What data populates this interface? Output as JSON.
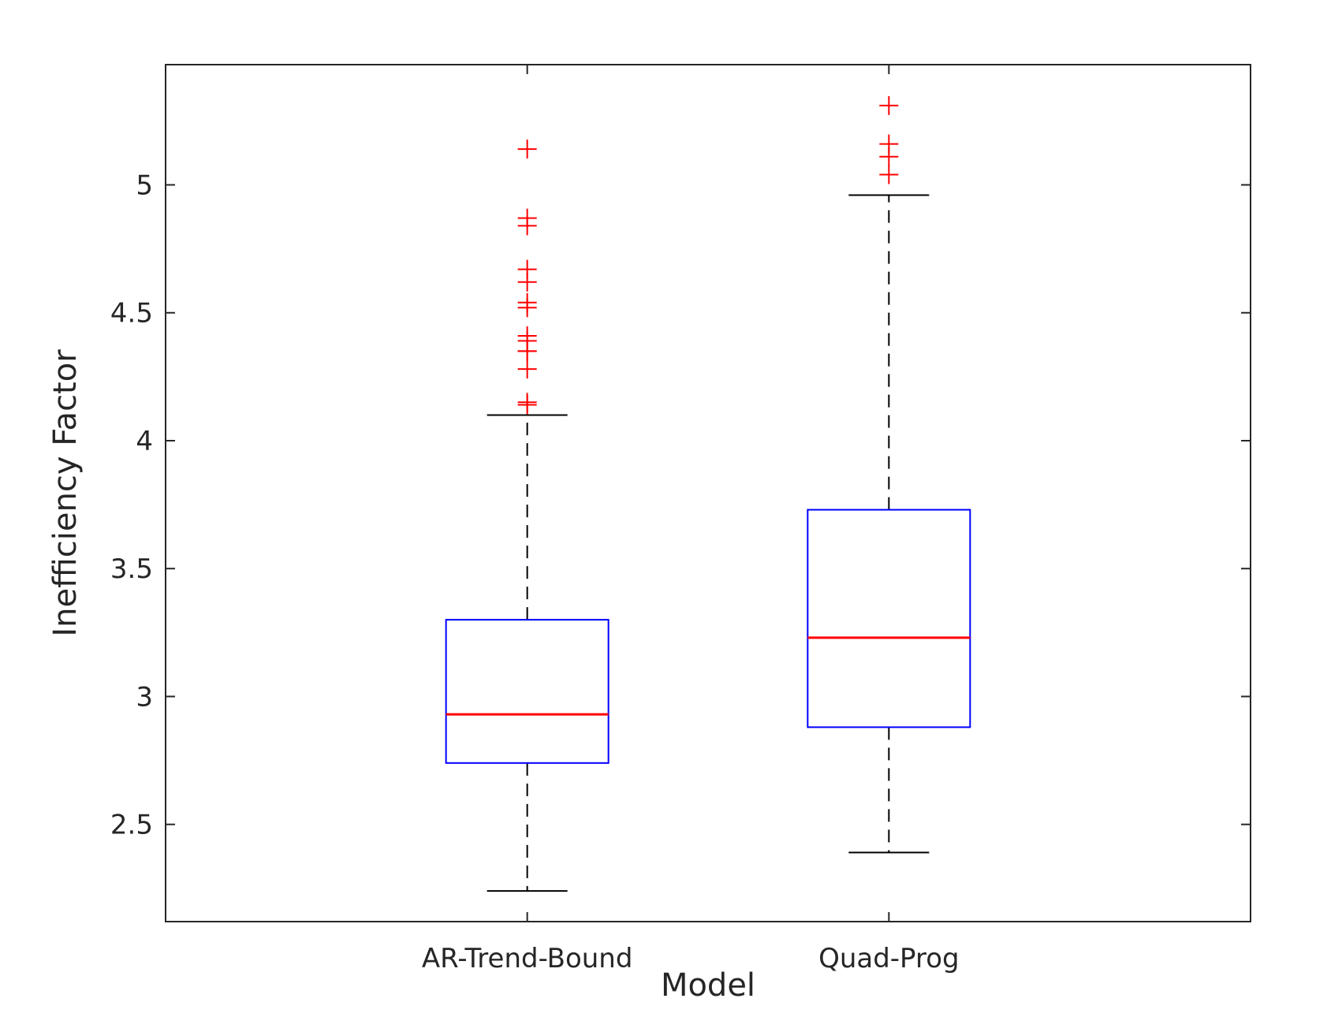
{
  "chart_data": {
    "type": "boxplot",
    "xlabel": "Model",
    "ylabel": "Inefficiency Factor",
    "ylim": [
      2.12,
      5.47
    ],
    "yticks": [
      2.5,
      3,
      3.5,
      4,
      4.5,
      5
    ],
    "ytick_labels": [
      "2.5",
      "3",
      "3.5",
      "4",
      "4.5",
      "5"
    ],
    "grid": false,
    "categories": [
      "AR-Trend-Bound",
      "Quad-Prog"
    ],
    "boxes": [
      {
        "label": "AR-Trend-Bound",
        "whisker_low": 2.24,
        "q1": 2.74,
        "median": 2.93,
        "q3": 3.3,
        "whisker_high": 4.1,
        "outliers": [
          4.14,
          4.15,
          4.28,
          4.35,
          4.35,
          4.39,
          4.41,
          4.52,
          4.54,
          4.62,
          4.67,
          4.84,
          4.87,
          5.14
        ]
      },
      {
        "label": "Quad-Prog",
        "whisker_low": 2.39,
        "q1": 2.88,
        "median": 3.23,
        "q3": 3.73,
        "whisker_high": 4.96,
        "outliers": [
          5.04,
          5.11,
          5.16,
          5.31
        ]
      }
    ],
    "colors": {
      "box": "#0000ff",
      "median": "#ff0000",
      "outlier": "#ff0000",
      "whisker": "#000000",
      "axes": "#262626"
    }
  }
}
